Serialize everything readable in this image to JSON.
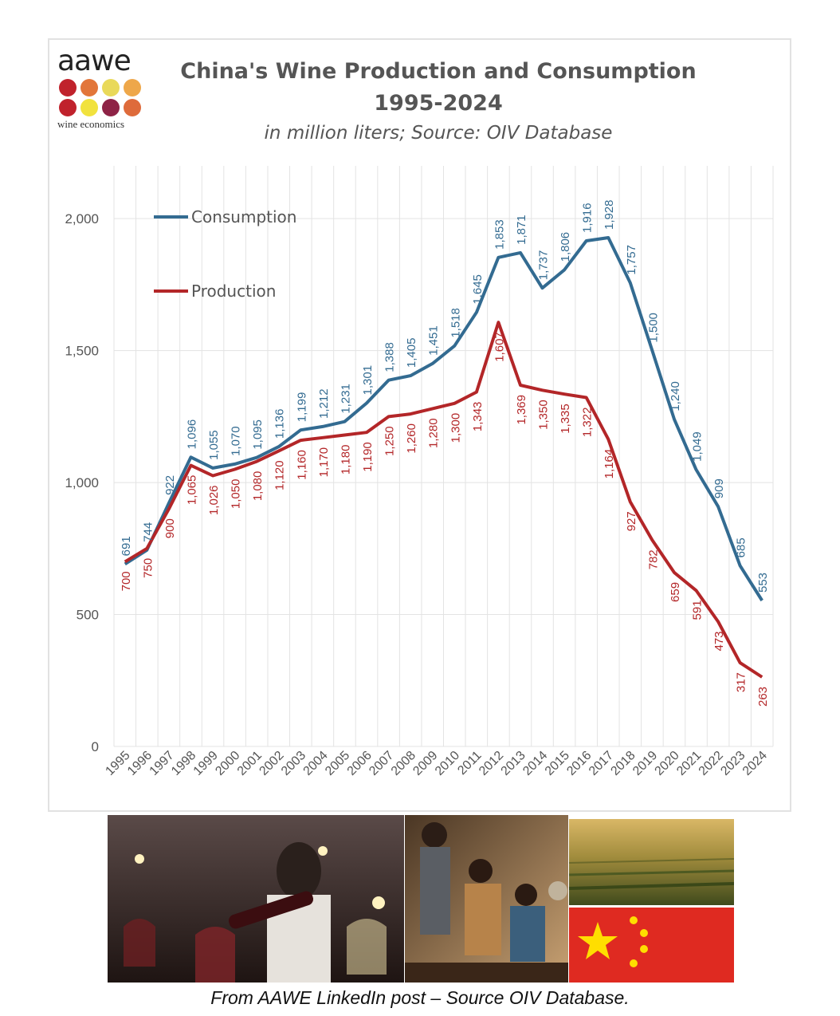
{
  "logo": {
    "word": "aawe",
    "sub": "wine economics"
  },
  "header": {
    "title_line1": "China's Wine Production and Consumption",
    "title_line2": "1995-2024",
    "subtitle": "in million liters; Source: OIV Database"
  },
  "caption": "From AAWE LinkedIn post – Source OIV Database.",
  "colors": {
    "consumption": "#336b91",
    "production": "#b32628",
    "grid": "#e3e3e3"
  },
  "photos": [
    {
      "name": "wine-pouring-photo"
    },
    {
      "name": "people-drinking-photo"
    },
    {
      "name": "vineyard-photo"
    },
    {
      "name": "china-flag-photo"
    }
  ],
  "chart_data": {
    "type": "line",
    "title": "China's Wine Production and Consumption 1995-2024",
    "subtitle": "in million liters; Source: OIV Database",
    "xlabel": "",
    "ylabel": "",
    "ylim": [
      0,
      2200
    ],
    "y_ticks": [
      0,
      500,
      1000,
      1500,
      2000
    ],
    "y_tick_labels": [
      "0",
      "500",
      "1,000",
      "1,500",
      "2,000"
    ],
    "grid": true,
    "legend_position": "top-left",
    "x": [
      "1995",
      "1996",
      "1997",
      "1998",
      "1999",
      "2000",
      "2001",
      "2002",
      "2003",
      "2004",
      "2005",
      "2006",
      "2007",
      "2008",
      "2009",
      "2010",
      "2011",
      "2012",
      "2013",
      "2014",
      "2015",
      "2016",
      "2017",
      "2018",
      "2019",
      "2020",
      "2021",
      "2022",
      "2023",
      "2024"
    ],
    "series": [
      {
        "name": "Consumption",
        "color": "#336b91",
        "values": [
          691,
          744,
          922,
          1096,
          1055,
          1070,
          1095,
          1136,
          1199,
          1212,
          1231,
          1301,
          1388,
          1405,
          1451,
          1518,
          1645,
          1853,
          1871,
          1737,
          1806,
          1916,
          1928,
          1757,
          1500,
          1240,
          1049,
          909,
          685,
          553
        ],
        "labels": [
          "691",
          "744",
          "922",
          "1,096",
          "1,055",
          "1,070",
          "1,095",
          "1,136",
          "1,199",
          "1,212",
          "1,231",
          "1,301",
          "1,388",
          "1,405",
          "1,451",
          "1,518",
          "1,645",
          "1,853",
          "1,871",
          "1,737",
          "1,806",
          "1,916",
          "1,928",
          "1,757",
          "1,500",
          "1,240",
          "1,049",
          "909",
          "685",
          "553"
        ]
      },
      {
        "name": "Production",
        "color": "#b32628",
        "values": [
          700,
          750,
          900,
          1065,
          1026,
          1050,
          1080,
          1120,
          1160,
          1170,
          1180,
          1190,
          1250,
          1260,
          1280,
          1300,
          1343,
          1607,
          1369,
          1350,
          1335,
          1322,
          1164,
          927,
          782,
          659,
          591,
          473,
          317,
          263
        ],
        "labels": [
          "700",
          "750",
          "900",
          "1,065",
          "1,026",
          "1,050",
          "1,080",
          "1,120",
          "1,160",
          "1,170",
          "1,180",
          "1,190",
          "1,250",
          "1,260",
          "1,280",
          "1,300",
          "1,343",
          "1,607",
          "1,369",
          "1,350",
          "1,335",
          "1,322",
          "1,164",
          "927",
          "782",
          "659",
          "591",
          "473",
          "317",
          "263"
        ]
      }
    ]
  }
}
